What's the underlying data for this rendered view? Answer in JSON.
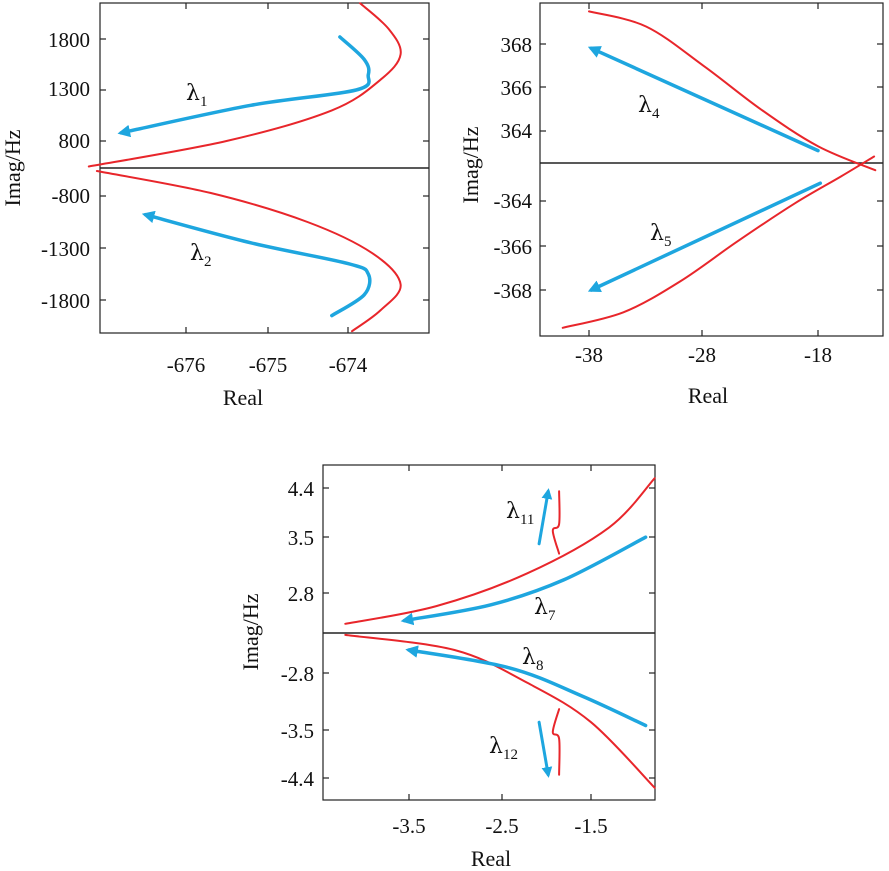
{
  "colors": {
    "red": "#e8262b",
    "blue": "#1ea6df",
    "axis": "#222222"
  },
  "chart_data": [
    {
      "type": "line",
      "xlabel": "Real",
      "ylabel": "Imag/Hz",
      "x_ticks": [
        "-676",
        "-675",
        "-674"
      ],
      "upper": {
        "y_ticks": [
          "1800",
          "1300",
          "800"
        ],
        "red_curve": [
          [
            -677.2,
            550
          ],
          [
            -675.5,
            800
          ],
          [
            -674.2,
            1100
          ],
          [
            -673.6,
            1400
          ],
          [
            -673.35,
            1650
          ],
          [
            -673.5,
            1900
          ],
          [
            -673.85,
            2150
          ]
        ],
        "blue_arrow": [
          [
            -674.1,
            1820
          ],
          [
            -673.8,
            1600
          ],
          [
            -673.75,
            1450
          ],
          [
            -673.9,
            1300
          ],
          [
            -675.2,
            1150
          ],
          [
            -676.8,
            880
          ]
        ],
        "label": {
          "symbol": "λ",
          "sub": "1"
        }
      },
      "lower": {
        "y_ticks": [
          "-800",
          "-1300",
          "-1800"
        ],
        "red_curve": [
          [
            -677.1,
            -560
          ],
          [
            -675.7,
            -770
          ],
          [
            -674.5,
            -1050
          ],
          [
            -673.7,
            -1350
          ],
          [
            -673.35,
            -1650
          ],
          [
            -673.6,
            -1900
          ],
          [
            -673.95,
            -2100
          ]
        ],
        "blue_arrow": [
          [
            -674.2,
            -1950
          ],
          [
            -673.8,
            -1750
          ],
          [
            -673.75,
            -1550
          ],
          [
            -674.0,
            -1450
          ],
          [
            -675.2,
            -1250
          ],
          [
            -676.5,
            -980
          ]
        ],
        "label": {
          "symbol": "λ",
          "sub": "2"
        }
      }
    },
    {
      "type": "line",
      "xlabel": "Real",
      "ylabel": "Imag/Hz",
      "x_ticks": [
        "-38",
        "-28",
        "-18"
      ],
      "upper": {
        "y_ticks": [
          "368",
          "366",
          "364"
        ],
        "red_curve": [
          [
            -38,
            369.5
          ],
          [
            -33,
            368.8
          ],
          [
            -28,
            367
          ],
          [
            -23,
            365
          ],
          [
            -18,
            363.3
          ],
          [
            -13,
            362.2
          ]
        ],
        "blue_arrow": [
          [
            -18,
            363.1
          ],
          [
            -37.8,
            367.8
          ]
        ],
        "label": {
          "symbol": "λ",
          "sub": "4"
        }
      },
      "lower": {
        "y_ticks": [
          "-364",
          "-366",
          "-368"
        ],
        "red_curve": [
          [
            -40.3,
            -369.7
          ],
          [
            -35,
            -369
          ],
          [
            -30,
            -367.6
          ],
          [
            -25,
            -365.8
          ],
          [
            -20,
            -364.1
          ],
          [
            -16,
            -362.9
          ],
          [
            -13.1,
            -362
          ]
        ],
        "blue_arrow": [
          [
            -17.8,
            -363.2
          ],
          [
            -37.8,
            -368
          ]
        ],
        "label": {
          "symbol": "λ",
          "sub": "5"
        }
      }
    },
    {
      "type": "line",
      "xlabel": "Real",
      "ylabel": "Imag/Hz",
      "x_ticks": [
        "-3.5",
        "-2.5",
        "-1.5"
      ],
      "upper": {
        "y_ticks": [
          "4.4",
          "3.5",
          "2.8"
        ],
        "red_curve": [
          [
            -4.2,
            2.33
          ],
          [
            -3.2,
            2.6
          ],
          [
            -2.2,
            3.1
          ],
          [
            -1.3,
            3.8
          ],
          [
            -0.8,
            4.55
          ]
        ],
        "blue_arrow": [
          [
            -0.9,
            3.65
          ],
          [
            -1.8,
            3.0
          ],
          [
            -2.6,
            2.62
          ],
          [
            -3.55,
            2.38
          ]
        ],
        "small_red": [
          [
            -1.85,
            3.4
          ],
          [
            -1.92,
            3.75
          ],
          [
            -1.85,
            3.85
          ],
          [
            -1.85,
            4.35
          ]
        ],
        "small_blue": [
          [
            -2.07,
            3.55
          ],
          [
            -1.97,
            4.35
          ]
        ],
        "main_label": {
          "symbol": "λ",
          "sub": "7"
        },
        "small_label": {
          "symbol": "λ",
          "sub": "11"
        }
      },
      "lower": {
        "y_ticks": [
          "-2.8",
          "-3.5",
          "-4.4"
        ],
        "red_curve": [
          [
            -4.2,
            -2.22
          ],
          [
            -3.0,
            -2.45
          ],
          [
            -2.2,
            -2.95
          ],
          [
            -1.5,
            -3.55
          ],
          [
            -0.8,
            -4.55
          ]
        ],
        "blue_arrow": [
          [
            -0.9,
            -3.6
          ],
          [
            -1.6,
            -3.15
          ],
          [
            -2.4,
            -2.72
          ],
          [
            -3.5,
            -2.45
          ]
        ],
        "small_red": [
          [
            -1.85,
            -3.35
          ],
          [
            -1.92,
            -3.7
          ],
          [
            -1.85,
            -3.8
          ],
          [
            -1.85,
            -4.35
          ]
        ],
        "small_blue": [
          [
            -2.07,
            -3.55
          ],
          [
            -1.97,
            -4.35
          ]
        ],
        "main_label": {
          "symbol": "λ",
          "sub": "8"
        },
        "small_label": {
          "symbol": "λ",
          "sub": "12"
        }
      }
    }
  ]
}
